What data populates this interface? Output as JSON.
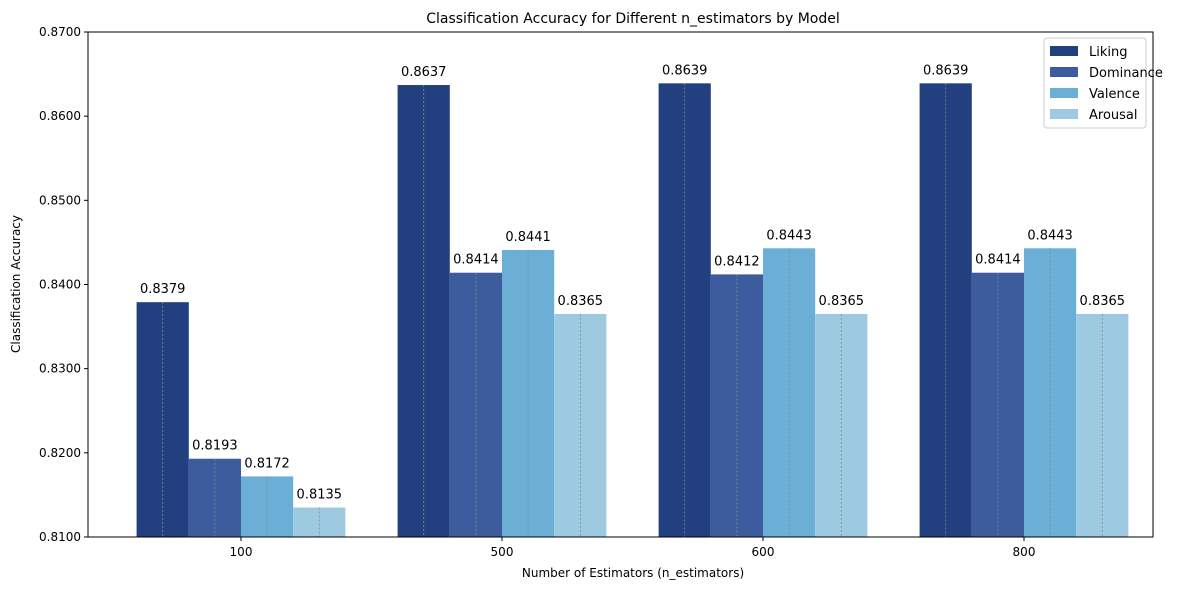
{
  "chart_data": {
    "type": "bar",
    "title": "Classification Accuracy for Different n_estimators by Model",
    "xlabel": "Number of Estimators (n_estimators)",
    "ylabel": "Classification Accuracy",
    "ylim": [
      0.81,
      0.87
    ],
    "yticks": [
      "0.8100",
      "0.8200",
      "0.8300",
      "0.8400",
      "0.8500",
      "0.8600",
      "0.8700"
    ],
    "categories": [
      "100",
      "500",
      "600",
      "800"
    ],
    "series": [
      {
        "name": "Liking",
        "color": "#223f80",
        "values": [
          0.8379,
          0.8637,
          0.8639,
          0.8639
        ],
        "labels": [
          "0.8379",
          "0.8637",
          "0.8639",
          "0.8639"
        ]
      },
      {
        "name": "Dominance",
        "color": "#3c5c9e",
        "values": [
          0.8193,
          0.8414,
          0.8412,
          0.8414
        ],
        "labels": [
          "0.8193",
          "0.8414",
          "0.8412",
          "0.8414"
        ]
      },
      {
        "name": "Valence",
        "color": "#6baed6",
        "values": [
          0.8172,
          0.8441,
          0.8443,
          0.8443
        ],
        "labels": [
          "0.8172",
          "0.8441",
          "0.8443",
          "0.8443"
        ]
      },
      {
        "name": "Arousal",
        "color": "#9ecae1",
        "values": [
          0.8135,
          0.8365,
          0.8365,
          0.8365
        ],
        "labels": [
          "0.8135",
          "0.8365",
          "0.8365",
          "0.8365"
        ]
      }
    ],
    "grid": false,
    "legend_position": "top-right"
  }
}
